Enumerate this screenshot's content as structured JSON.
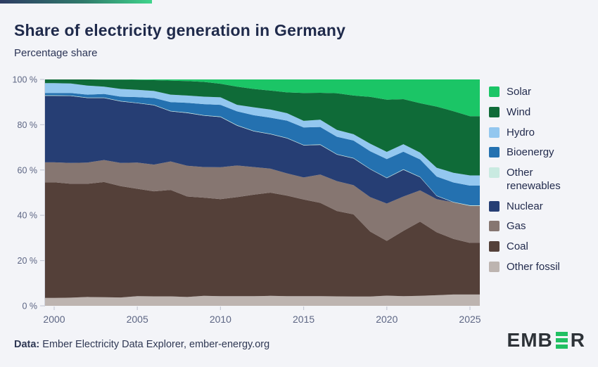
{
  "page": {
    "background": "#f3f4f8"
  },
  "header": {
    "title": "Share of electricity generation in Germany",
    "subtitle": "Percentage share",
    "accent_bar_from": "#2e3c64",
    "accent_bar_to": "#3fd48c"
  },
  "chart_data": {
    "type": "area",
    "stacked": true,
    "unit": "%",
    "title": "Share of electricity generation in Germany",
    "ylabel": "Percentage share",
    "ylim": [
      0,
      100
    ],
    "grid": false,
    "legend_position": "right",
    "x": [
      2000,
      2001,
      2002,
      2003,
      2004,
      2005,
      2006,
      2007,
      2008,
      2009,
      2010,
      2011,
      2012,
      2013,
      2014,
      2015,
      2016,
      2017,
      2018,
      2019,
      2020,
      2021,
      2022,
      2023,
      2024,
      2025
    ],
    "x_ticks": [
      2000,
      2005,
      2010,
      2015,
      2020,
      2025
    ],
    "y_tick_values": [
      0,
      20,
      40,
      60,
      80,
      100
    ],
    "y_tick_labels": [
      "0 %",
      "20 %",
      "40 %",
      "60 %",
      "80 %",
      "100 %"
    ],
    "series_order": "top-to-bottom",
    "series": [
      {
        "name": "Solar",
        "slug": "solar",
        "color": "#1bc566",
        "values": [
          0.0,
          0.0,
          0.0,
          0.1,
          0.1,
          0.2,
          0.3,
          0.5,
          0.7,
          1.1,
          1.9,
          3.2,
          4.2,
          4.9,
          5.7,
          6.0,
          5.9,
          6.1,
          7.1,
          7.7,
          8.9,
          8.7,
          10.5,
          12.0,
          14.0,
          16.2
        ]
      },
      {
        "name": "Wind",
        "slug": "wind",
        "color": "#0f6b38",
        "values": [
          1.6,
          1.8,
          2.7,
          3.1,
          4.1,
          4.4,
          4.8,
          6.2,
          6.4,
          6.5,
          6.0,
          8.0,
          8.1,
          8.4,
          9.2,
          12.3,
          11.9,
          16.2,
          17.1,
          20.7,
          23.1,
          19.9,
          21.8,
          27.0,
          27.2,
          26.2
        ]
      },
      {
        "name": "Hydro",
        "slug": "hydro",
        "color": "#93c7ef",
        "values": [
          4.4,
          4.2,
          4.0,
          3.2,
          3.4,
          3.2,
          3.1,
          3.3,
          3.2,
          3.3,
          3.3,
          2.9,
          3.5,
          3.6,
          3.3,
          2.9,
          3.2,
          3.0,
          2.8,
          3.3,
          3.2,
          3.3,
          3.0,
          3.9,
          4.3,
          4.5
        ]
      },
      {
        "name": "Bioenergy",
        "slug": "bioenergy",
        "color": "#2471b0",
        "values": [
          1.0,
          1.1,
          1.3,
          1.6,
          1.9,
          2.5,
          3.0,
          3.9,
          4.3,
          4.9,
          5.2,
          6.1,
          6.9,
          7.1,
          7.6,
          7.7,
          7.7,
          7.7,
          7.7,
          7.8,
          8.2,
          7.8,
          7.7,
          8.4,
          8.6,
          8.7
        ]
      },
      {
        "name": "Other renewables",
        "slug": "other-renewables",
        "color": "#c9eae1",
        "values": [
          0.2,
          0.2,
          0.2,
          0.2,
          0.2,
          0.2,
          0.2,
          0.2,
          0.2,
          0.2,
          0.2,
          0.2,
          0.2,
          0.2,
          0.2,
          0.2,
          0.2,
          0.2,
          0.2,
          0.2,
          0.2,
          0.2,
          0.2,
          0.2,
          0.2,
          0.2
        ]
      },
      {
        "name": "Nuclear",
        "slug": "nuclear",
        "color": "#263e74",
        "values": [
          29.4,
          29.6,
          28.5,
          27.4,
          27.2,
          26.2,
          26.2,
          22.1,
          23.3,
          22.7,
          22.2,
          17.6,
          15.8,
          15.2,
          15.5,
          14.2,
          13.1,
          11.7,
          11.8,
          12.3,
          11.2,
          11.8,
          5.8,
          1.4,
          0.0,
          0.0
        ]
      },
      {
        "name": "Gas",
        "slug": "gas",
        "color": "#867671",
        "values": [
          8.8,
          9.2,
          9.4,
          9.7,
          10.2,
          11.6,
          11.8,
          12.6,
          13.6,
          13.5,
          14.1,
          14.0,
          12.2,
          10.6,
          9.8,
          9.7,
          12.5,
          13.2,
          12.9,
          15.2,
          16.5,
          15.2,
          13.8,
          14.6,
          16.1,
          16.4
        ]
      },
      {
        "name": "Coal",
        "slug": "coal",
        "color": "#544039",
        "values": [
          51.1,
          50.3,
          50.0,
          50.9,
          49.2,
          47.4,
          46.4,
          47.0,
          44.4,
          43.4,
          42.8,
          43.7,
          44.8,
          45.6,
          44.4,
          42.7,
          41.2,
          37.7,
          36.3,
          28.7,
          24.2,
          28.8,
          32.8,
          27.8,
          24.6,
          22.8
        ]
      },
      {
        "name": "Other fossil",
        "slug": "other-fossil",
        "color": "#bdb4b0",
        "values": [
          3.5,
          3.6,
          3.9,
          3.8,
          3.7,
          4.3,
          4.2,
          4.2,
          3.9,
          4.4,
          4.3,
          4.3,
          4.3,
          4.4,
          4.3,
          4.3,
          4.3,
          4.2,
          4.1,
          4.1,
          4.5,
          4.3,
          4.4,
          4.7,
          5.0,
          5.0
        ]
      }
    ]
  },
  "axis_colors": {
    "label": "#5d6684",
    "tick": "#c6cad6",
    "axis_line": "#d3d6e0"
  },
  "footer": {
    "source_prefix": "Data:",
    "source_text": "Ember Electricity Data Explorer, ember-energy.org",
    "logo": {
      "text_left": "EMB",
      "bar_letter": "E",
      "text_right": "R",
      "bar_color": "#21c063",
      "text_color": "#2d3238"
    }
  }
}
